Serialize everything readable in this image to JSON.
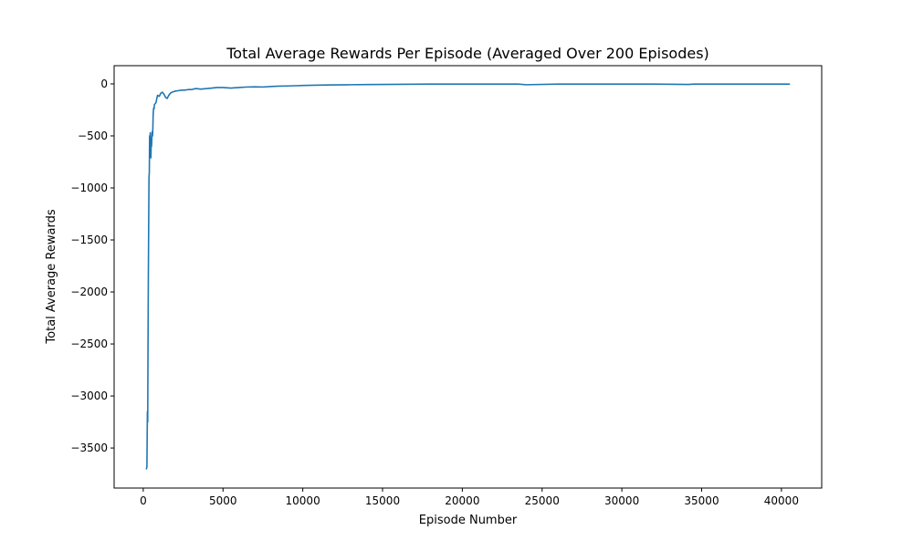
{
  "chart_data": {
    "type": "line",
    "title": "Total Average Rewards Per Episode (Averaged Over 200 Episodes)",
    "xlabel": "Episode Number",
    "ylabel": "Total Average Rewards",
    "xlim": [
      -1825,
      42525
    ],
    "ylim": [
      -3885,
      175
    ],
    "xticks": [
      0,
      5000,
      10000,
      15000,
      20000,
      25000,
      30000,
      35000,
      40000
    ],
    "xtick_labels": [
      "0",
      "5000",
      "10000",
      "15000",
      "20000",
      "25000",
      "30000",
      "35000",
      "40000"
    ],
    "yticks": [
      0,
      -500,
      -1000,
      -1500,
      -2000,
      -2500,
      -3000,
      -3500
    ],
    "ytick_labels": [
      "0",
      "−500",
      "−1000",
      "−1500",
      "−2000",
      "−2500",
      "−3000",
      "−3500"
    ],
    "grid": false,
    "legend": false,
    "series": [
      {
        "color": "#1f77b4",
        "x": [
          200,
          230,
          260,
          280,
          300,
          320,
          340,
          360,
          380,
          400,
          420,
          440,
          460,
          480,
          500,
          520,
          540,
          560,
          580,
          600,
          620,
          640,
          660,
          680,
          700,
          750,
          800,
          850,
          900,
          1000,
          1100,
          1200,
          1300,
          1400,
          1500,
          1600,
          1700,
          1800,
          1900,
          2000,
          2200,
          2400,
          2600,
          2800,
          3000,
          3300,
          3600,
          4000,
          4300,
          4600,
          5000,
          5500,
          6000,
          6500,
          7000,
          7500,
          8000,
          8500,
          9000,
          9500,
          10000,
          11000,
          12000,
          13000,
          14000,
          15000,
          16000,
          17000,
          18000,
          20000,
          22000,
          23500,
          24000,
          26000,
          28000,
          30000,
          32000,
          34200,
          34500,
          36000,
          38000,
          40000,
          40500
        ],
        "y": [
          -3700,
          -3680,
          -3150,
          -3250,
          -2500,
          -1850,
          -1380,
          -900,
          -850,
          -500,
          -560,
          -470,
          -600,
          -710,
          -560,
          -600,
          -520,
          -460,
          -500,
          -440,
          -300,
          -250,
          -230,
          -240,
          -200,
          -190,
          -180,
          -140,
          -110,
          -120,
          -90,
          -80,
          -100,
          -130,
          -140,
          -110,
          -90,
          -80,
          -75,
          -70,
          -65,
          -60,
          -60,
          -55,
          -55,
          -45,
          -50,
          -45,
          -40,
          -35,
          -35,
          -40,
          -35,
          -30,
          -28,
          -30,
          -25,
          -22,
          -20,
          -18,
          -15,
          -12,
          -10,
          -8,
          -6,
          -5,
          -4,
          -3,
          -2,
          -2,
          -2,
          -2,
          -8,
          -2,
          -2,
          -2,
          -2,
          -5,
          -2,
          -2,
          -2,
          -2,
          -2
        ]
      }
    ]
  }
}
